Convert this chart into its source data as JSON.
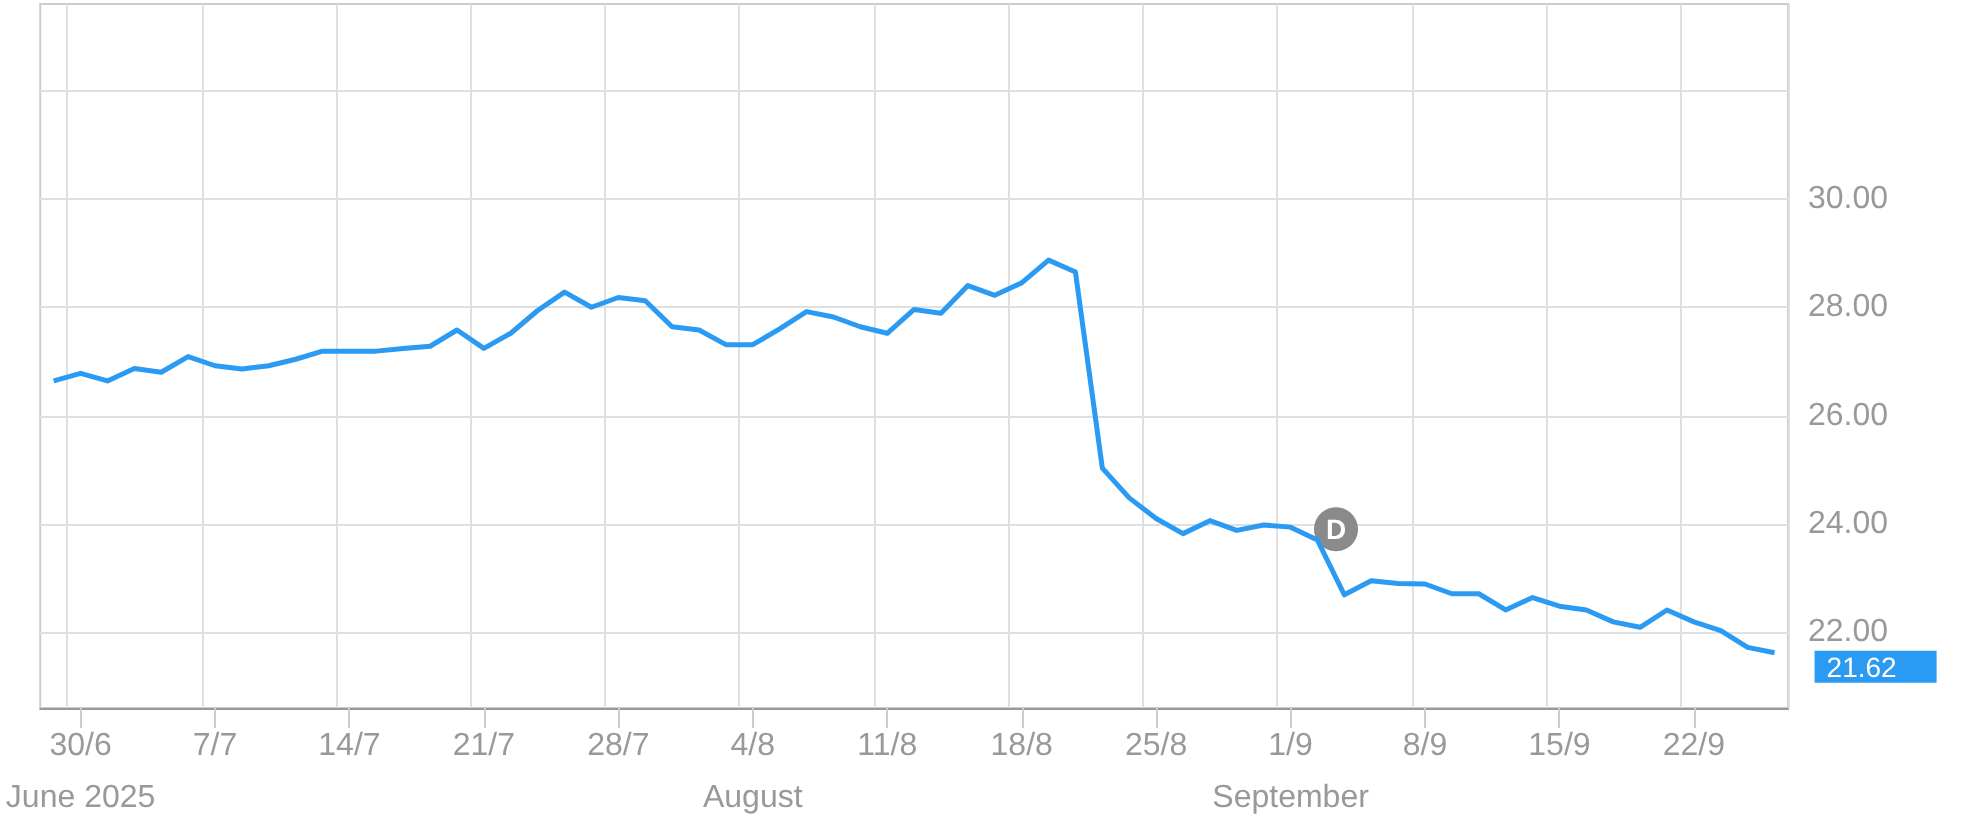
{
  "chart_data": {
    "type": "line",
    "categories": [
      null,
      "30/6\nJune 2025",
      null,
      null,
      null,
      null,
      "7/7",
      null,
      null,
      null,
      null,
      "14/7",
      null,
      null,
      null,
      null,
      "21/7",
      null,
      null,
      null,
      null,
      "28/7",
      null,
      null,
      null,
      null,
      "4/8\nAugust",
      null,
      null,
      null,
      null,
      "11/8",
      null,
      null,
      null,
      null,
      "18/8",
      null,
      null,
      null,
      null,
      "25/8",
      null,
      null,
      null,
      null,
      "1/9\nSeptember",
      null,
      null,
      null,
      null,
      "8/9",
      null,
      null,
      null,
      null,
      "15/9",
      null,
      null,
      null,
      null,
      "22/9",
      null,
      null,
      null
    ],
    "series": [
      {
        "color": "#2b9af3",
        "values": [
          26.64,
          26.78,
          26.64,
          26.87,
          26.8,
          27.09,
          26.92,
          26.86,
          26.92,
          27.04,
          27.19,
          27.19,
          27.19,
          27.24,
          27.28,
          27.58,
          27.24,
          27.52,
          27.94,
          28.28,
          28.0,
          28.18,
          28.12,
          27.64,
          27.58,
          27.31,
          27.31,
          27.6,
          27.92,
          27.82,
          27.64,
          27.52,
          27.96,
          27.89,
          28.4,
          28.22,
          28.45,
          28.87,
          28.65,
          25.03,
          24.48,
          24.1,
          23.82,
          24.06,
          23.88,
          23.98,
          23.94,
          23.7,
          22.69,
          22.95,
          22.9,
          22.89,
          22.71,
          22.71,
          22.41,
          22.64,
          22.48,
          22.41,
          22.19,
          22.09,
          22.41,
          22.19,
          22.03,
          21.72,
          21.62
        ],
        "value_labels": [
          null,
          null,
          null,
          null,
          null,
          null,
          null,
          null,
          null,
          null,
          null,
          null,
          null,
          null,
          null,
          null,
          null,
          null,
          null,
          null,
          null,
          null,
          null,
          null,
          null,
          null,
          null,
          null,
          null,
          null,
          null,
          null,
          null,
          null,
          null,
          null,
          null,
          null,
          null,
          null,
          null,
          null,
          null,
          null,
          null,
          null,
          null,
          null,
          null,
          null,
          null,
          null,
          null,
          null,
          null,
          null,
          null,
          null,
          null,
          null,
          null,
          null,
          null,
          null,
          "21.62"
        ]
      }
    ],
    "ylim": [
      20.6,
      33.6
    ],
    "yticks": [
      {
        "value": 22,
        "label": "22.00"
      },
      {
        "value": 24,
        "label": "24.00"
      },
      {
        "value": 26,
        "label": "26.00"
      },
      {
        "value": 28,
        "label": "28.00"
      },
      {
        "value": 30,
        "label": "30.00"
      },
      {
        "value": 32,
        "label": null
      }
    ],
    "annotations": [
      {
        "text": "D",
        "y": 23.9
      }
    ],
    "grid": true,
    "marker": "none",
    "line_style": "solid"
  }
}
